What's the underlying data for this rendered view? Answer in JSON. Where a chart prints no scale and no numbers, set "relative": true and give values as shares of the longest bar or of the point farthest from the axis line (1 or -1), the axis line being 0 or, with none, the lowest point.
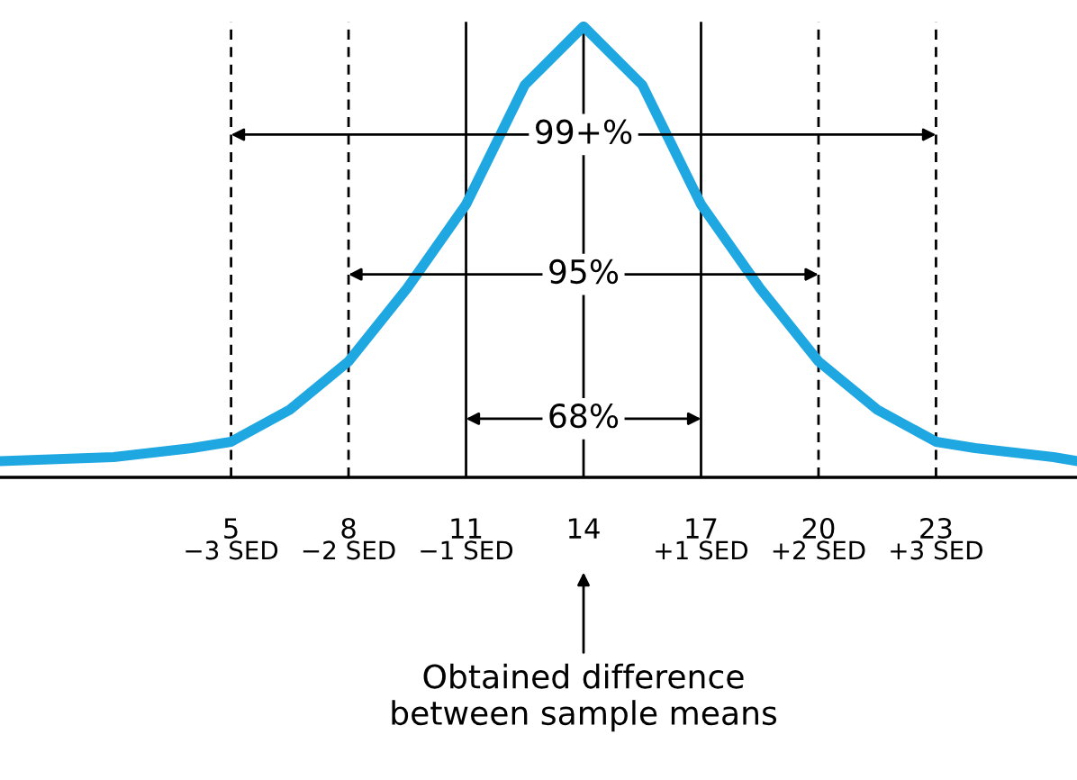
{
  "chart_data": {
    "type": "line",
    "relative": true,
    "x": [
      -0.9,
      2,
      4,
      5,
      6.5,
      8,
      9.5,
      11,
      12.5,
      14,
      15.5,
      17,
      18.5,
      20,
      21.5,
      23,
      24,
      26,
      26.6
    ],
    "series": [
      {
        "color": "#1ea7e1",
        "values": [
          0.036,
          0.045,
          0.065,
          0.079,
          0.15,
          0.257,
          0.42,
          0.605,
          0.87,
          1,
          0.87,
          0.605,
          0.42,
          0.257,
          0.15,
          0.079,
          0.065,
          0.045,
          0.036
        ]
      }
    ],
    "xlim": [
      -0.9,
      26.6
    ],
    "xticks": [
      5,
      8,
      11,
      14,
      17,
      20,
      23
    ],
    "tick_labels": "x",
    "grid": false,
    "legend": false,
    "line_style": "solid",
    "marker": "none",
    "ref_lines": [
      {
        "axis": "x",
        "value": 5,
        "line_style": "dashed",
        "color": "#000000"
      },
      {
        "axis": "x",
        "value": 8,
        "line_style": "dashed",
        "color": "#000000"
      },
      {
        "axis": "x",
        "value": 11,
        "line_style": "solid",
        "color": "#000000"
      },
      {
        "axis": "x",
        "value": 14,
        "line_style": "solid",
        "color": "#000000"
      },
      {
        "axis": "x",
        "value": 17,
        "line_style": "solid",
        "color": "#000000"
      },
      {
        "axis": "x",
        "value": 20,
        "line_style": "dashed",
        "color": "#000000"
      },
      {
        "axis": "x",
        "value": 23,
        "line_style": "dashed",
        "color": "#000000"
      }
    ],
    "annotations": [
      {
        "text": "99+%",
        "x": 14,
        "y": 0.76
      },
      {
        "text": "95%",
        "x": 14,
        "y": 0.45
      },
      {
        "text": "68%",
        "x": 14,
        "y": 0.13
      },
      {
        "text": "−3 SED",
        "x": 5,
        "y": 0
      },
      {
        "text": "−2 SED",
        "x": 8,
        "y": 0
      },
      {
        "text": "−1 SED",
        "x": 11,
        "y": 0
      },
      {
        "text": "+1 SED",
        "x": 17,
        "y": 0
      },
      {
        "text": "+2 SED",
        "x": 20,
        "y": 0
      },
      {
        "text": "+3 SED",
        "x": 23,
        "y": 0
      },
      "Obtained difference\nbetween sample means"
    ]
  }
}
